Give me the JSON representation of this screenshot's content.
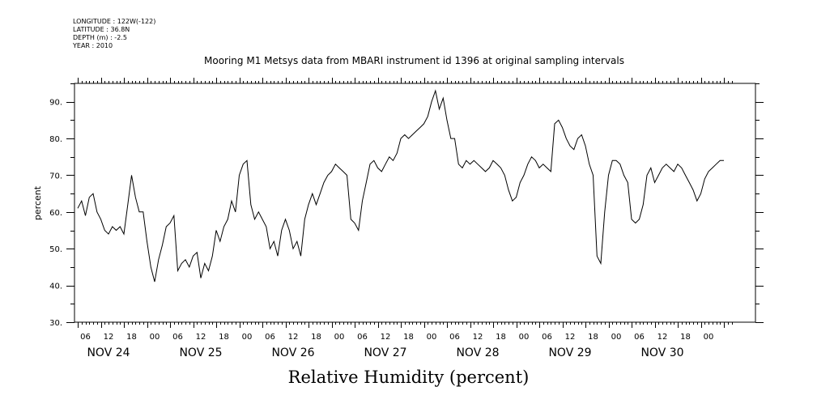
{
  "meta": {
    "longitude": "LONGITUDE : 122W(-122)",
    "latitude": "LATITUDE : 36.8N",
    "depth": "DEPTH (m) : -2.5",
    "year": "YEAR : 2010"
  },
  "chart_data": {
    "type": "line",
    "title": "Mooring M1 Metsys data from MBARI instrument id 1396 at original sampling intervals",
    "xlabel": "Relative Humidity (percent)",
    "ylabel": "percent",
    "ylim": [
      30,
      95
    ],
    "yticks": [
      30,
      40,
      50,
      60,
      70,
      80,
      90
    ],
    "xlim_hours": [
      0,
      168
    ],
    "hour_ticks": [
      "06",
      "12",
      "18",
      "00",
      "06",
      "12",
      "18",
      "00",
      "06",
      "12",
      "18",
      "00",
      "06",
      "12",
      "18",
      "00",
      "06",
      "12",
      "18",
      "00",
      "06",
      "12",
      "18",
      "00",
      "06",
      "12",
      "18",
      "00"
    ],
    "day_labels": [
      "NOV 24",
      "NOV 25",
      "NOV 26",
      "NOV 27",
      "NOV 28",
      "NOV 29",
      "NOV 30"
    ],
    "grid": false,
    "series": [
      {
        "color": "#000000",
        "x_hours": [
          0,
          1,
          2,
          3,
          4,
          5,
          6,
          7,
          8,
          9,
          10,
          11,
          12,
          13,
          14,
          15,
          16,
          17,
          18,
          19,
          20,
          21,
          22,
          23,
          24,
          25,
          26,
          27,
          28,
          29,
          30,
          31,
          32,
          33,
          34,
          35,
          36,
          37,
          38,
          39,
          40,
          41,
          42,
          43,
          44,
          45,
          46,
          47,
          48,
          49,
          50,
          51,
          52,
          53,
          54,
          55,
          56,
          57,
          58,
          59,
          60,
          61,
          62,
          63,
          64,
          65,
          66,
          67,
          68,
          69,
          70,
          71,
          72,
          73,
          74,
          75,
          76,
          77,
          78,
          79,
          80,
          81,
          82,
          83,
          84,
          85,
          86,
          87,
          88,
          89,
          90,
          91,
          92,
          93,
          94,
          95,
          96,
          97,
          98,
          99,
          100,
          101,
          102,
          103,
          104,
          105,
          106,
          107,
          108,
          109,
          110,
          111,
          112,
          113,
          114,
          115,
          116,
          117,
          118,
          119,
          120,
          121,
          122,
          123,
          124,
          125,
          126,
          127,
          128,
          129,
          130,
          131,
          132,
          133,
          134,
          135,
          136,
          137,
          138,
          139,
          140,
          141,
          142,
          143,
          144,
          145,
          146,
          147,
          148,
          149,
          150,
          151,
          152,
          153,
          154,
          155,
          156,
          157,
          158,
          159,
          160,
          161,
          162,
          163,
          164,
          165,
          166,
          167,
          168
        ],
        "values": [
          61,
          63,
          59,
          64,
          65,
          60,
          58,
          55,
          54,
          56,
          55,
          56,
          54,
          62,
          70,
          64,
          60,
          60,
          52,
          45,
          41,
          47,
          51,
          56,
          57,
          59,
          44,
          46,
          47,
          45,
          48,
          49,
          42,
          46,
          44,
          48,
          55,
          52,
          56,
          58,
          63,
          60,
          70,
          73,
          74,
          62,
          58,
          60,
          58,
          56,
          50,
          52,
          48,
          55,
          58,
          55,
          50,
          52,
          48,
          58,
          62,
          65,
          62,
          65,
          68,
          70,
          71,
          73,
          72,
          71,
          70,
          58,
          57,
          55,
          63,
          68,
          73,
          74,
          72,
          71,
          73,
          75,
          74,
          76,
          80,
          81,
          80,
          81,
          82,
          83,
          84,
          86,
          90,
          93,
          88,
          91,
          85,
          80,
          80,
          73,
          72,
          74,
          73,
          74,
          73,
          72,
          71,
          72,
          74,
          73,
          72,
          70,
          66,
          63,
          64,
          68,
          70,
          73,
          75,
          74,
          72,
          73,
          72,
          71,
          84,
          85,
          83,
          80,
          78,
          77,
          80,
          81,
          78,
          73,
          70,
          48,
          46,
          60,
          70,
          74,
          74,
          73,
          70,
          68,
          58,
          57,
          58,
          62,
          70,
          72,
          68,
          70,
          72,
          73,
          72,
          71,
          73,
          72,
          70,
          68,
          66,
          63,
          65,
          69,
          71,
          72,
          73,
          74,
          74
        ]
      }
    ]
  }
}
